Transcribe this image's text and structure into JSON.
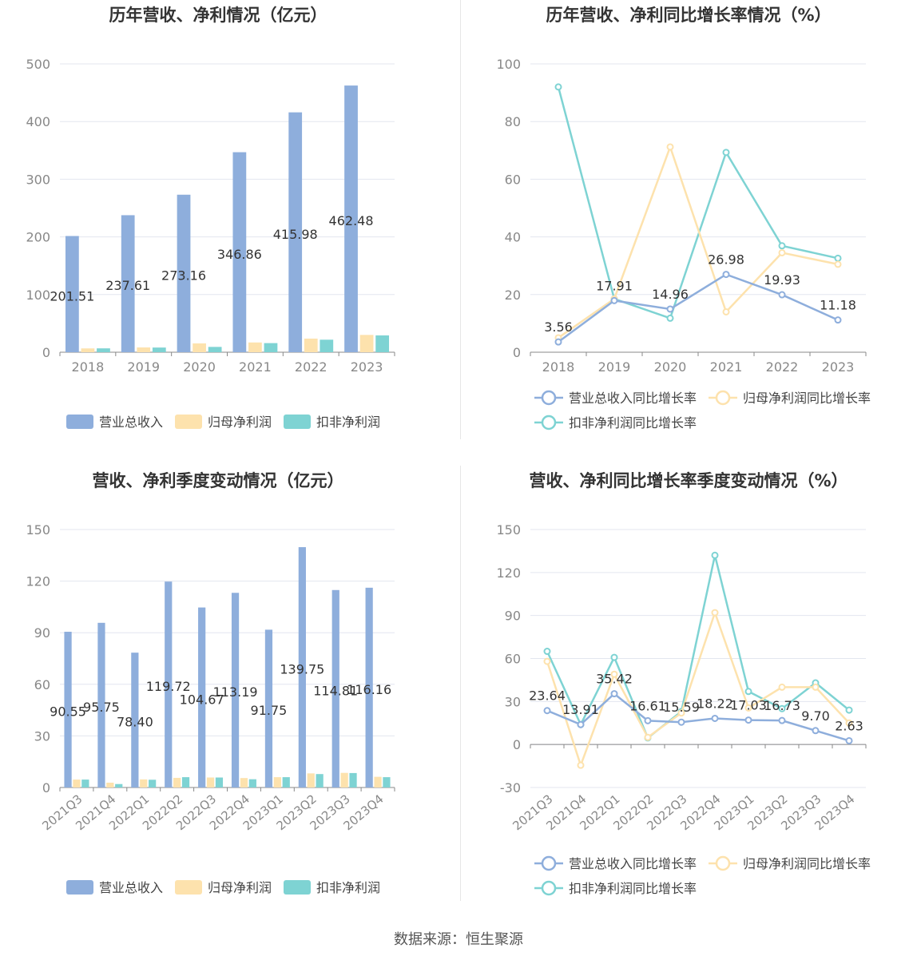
{
  "source": "数据来源：恒生聚源",
  "colors": {
    "revenue": "#8eaedc",
    "net": "#fde2ad",
    "deducted": "#7ed3d3"
  },
  "chart_data": [
    {
      "type": "bar",
      "title": "历年营收、净利情况（亿元）",
      "categories": [
        "2018",
        "2019",
        "2020",
        "2021",
        "2022",
        "2023"
      ],
      "ylim": [
        0,
        500
      ],
      "yticks": [
        "0",
        "100",
        "200",
        "300",
        "400",
        "500"
      ],
      "legend_position": "bottom",
      "series": [
        {
          "name": "营业总收入",
          "values": [
            201.51,
            237.61,
            273.16,
            346.86,
            415.98,
            462.48
          ],
          "labels": [
            "201.51",
            "237.61",
            "273.16",
            "346.86",
            "415.98",
            "462.48"
          ]
        },
        {
          "name": "归母净利润",
          "values": [
            6.6,
            8.3,
            15.3,
            16.9,
            23.6,
            30.0
          ]
        },
        {
          "name": "扣非净利润",
          "values": [
            6.7,
            8.1,
            9.2,
            15.8,
            21.7,
            29.2
          ]
        }
      ]
    },
    {
      "type": "line",
      "title": "历年营收、净利同比增长率情况（%）",
      "categories": [
        "2018",
        "2019",
        "2020",
        "2021",
        "2022",
        "2023"
      ],
      "ylim": [
        0,
        100
      ],
      "yticks": [
        "0",
        "20",
        "40",
        "60",
        "80",
        "100"
      ],
      "legend_position": "bottom",
      "series": [
        {
          "name": "营业总收入同比增长率",
          "values": [
            3.56,
            17.91,
            14.96,
            26.98,
            19.93,
            11.18
          ],
          "labels": [
            "3.56",
            "17.91",
            "14.96",
            "26.98",
            "19.93",
            "11.18"
          ]
        },
        {
          "name": "归母净利润同比增长率",
          "values": [
            5.0,
            18.5,
            71.2,
            14.0,
            34.5,
            30.5
          ]
        },
        {
          "name": "扣非净利润同比增长率",
          "values": [
            92.0,
            18.5,
            11.8,
            69.3,
            36.9,
            32.6
          ]
        }
      ]
    },
    {
      "type": "bar",
      "title": "营收、净利季度变动情况（亿元）",
      "categories": [
        "2021Q3",
        "2021Q4",
        "2022Q1",
        "2022Q2",
        "2022Q3",
        "2022Q4",
        "2023Q1",
        "2023Q2",
        "2023Q3",
        "2023Q4"
      ],
      "ylim": [
        0,
        150
      ],
      "yticks": [
        "0",
        "30",
        "60",
        "90",
        "120",
        "150"
      ],
      "legend_position": "bottom",
      "series": [
        {
          "name": "营业总收入",
          "values": [
            90.55,
            95.75,
            78.4,
            119.72,
            104.67,
            113.19,
            91.75,
            139.75,
            114.81,
            116.16
          ],
          "labels": [
            "90.55",
            "95.75",
            "78.40",
            "119.72",
            "104.67",
            "113.19",
            "91.75",
            "139.75",
            "114.81",
            "116.16"
          ]
        },
        {
          "name": "归母净利润",
          "values": [
            4.6,
            2.8,
            4.7,
            5.6,
            5.8,
            5.5,
            6.0,
            8.2,
            8.5,
            6.2
          ]
        },
        {
          "name": "扣非净利润",
          "values": [
            4.6,
            2.0,
            4.5,
            6.0,
            5.8,
            4.8,
            6.0,
            7.8,
            8.4,
            6.0
          ]
        }
      ]
    },
    {
      "type": "line",
      "title": "营收、净利同比增长率季度变动情况（%）",
      "categories": [
        "2021Q3",
        "2021Q4",
        "2022Q1",
        "2022Q2",
        "2022Q3",
        "2022Q4",
        "2023Q1",
        "2023Q2",
        "2023Q3",
        "2023Q4"
      ],
      "ylim": [
        -30,
        150
      ],
      "yticks": [
        "-30",
        "0",
        "30",
        "60",
        "90",
        "120",
        "150"
      ],
      "legend_position": "bottom",
      "series": [
        {
          "name": "营业总收入同比增长率",
          "values": [
            23.64,
            13.91,
            35.42,
            16.61,
            15.59,
            18.22,
            17.03,
            16.73,
            9.7,
            2.63
          ],
          "labels": [
            "23.64",
            "13.91",
            "35.42",
            "16.61",
            "15.59",
            "18.22",
            "17.03",
            "16.73",
            "9.70",
            "2.63"
          ]
        },
        {
          "name": "归母净利润同比增长率",
          "values": [
            58.0,
            -14.5,
            49.0,
            5.0,
            22.0,
            92.0,
            25.5,
            40.0,
            40.0,
            15.0
          ]
        },
        {
          "name": "扣非净利润同比增长率",
          "values": [
            65.0,
            13.9,
            60.8,
            4.6,
            23.0,
            132.0,
            37.0,
            25.0,
            43.0,
            24.0
          ]
        }
      ]
    }
  ]
}
